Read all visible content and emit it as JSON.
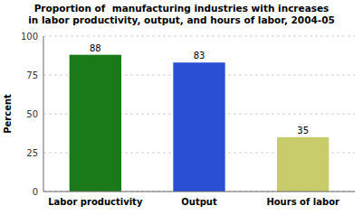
{
  "chart_data": {
    "type": "bar",
    "title": "Proportion of  manufacturing industries with increases\nin labor productivity, output, and hours of labor, 2004-05",
    "categories": [
      "Labor productivity",
      "Output",
      "Hours of labor"
    ],
    "values": [
      88,
      83,
      35
    ],
    "colors": [
      "#1a7a1a",
      "#2a4fd4",
      "#c8cc6a"
    ],
    "ylabel": "Percent",
    "ylim": [
      0,
      100
    ],
    "yticks": [
      0,
      25,
      50,
      75,
      100
    ],
    "grid": true,
    "data_labels": true
  }
}
